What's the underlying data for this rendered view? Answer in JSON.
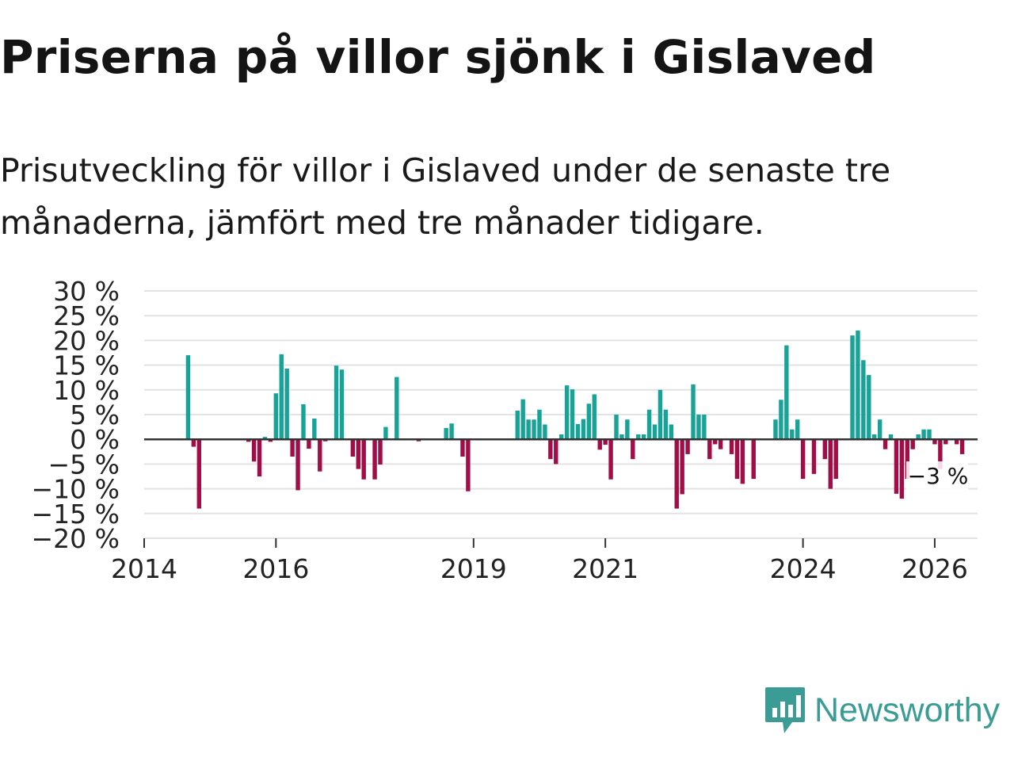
{
  "title": "Priserna på villor sjönk i Gislaved",
  "subtitle": "Prisutveckling för villor i Gislaved under de senaste tre månaderna, jämfört med tre månader tidigare.",
  "logo": {
    "text": "Newsworthy",
    "icon": "newsworthy-chart-icon"
  },
  "colors": {
    "positive": "#17a398",
    "negative": "#a10d46",
    "grid": "#e3e3e3",
    "zero": "#333333",
    "brand": "#3a9c94"
  },
  "chart_data": {
    "type": "bar",
    "title": "Priserna på villor sjönk i Gislaved",
    "xlabel": "",
    "ylabel": "",
    "ylim": [
      -20,
      30
    ],
    "yticks": [
      30,
      25,
      20,
      15,
      10,
      5,
      0,
      -5,
      -10,
      -15,
      -20
    ],
    "ytick_labels": [
      "30 %",
      "25 %",
      "20 %",
      "15 %",
      "10 %",
      "5 %",
      "0 %",
      "−5 %",
      "−10 %",
      "−15 %",
      "−20 %"
    ],
    "xticks": [
      {
        "year": 2014.0,
        "label": "2014"
      },
      {
        "year": 2016.0,
        "label": "2016"
      },
      {
        "year": 2019.0,
        "label": "2019"
      },
      {
        "year": 2021.0,
        "label": "2021"
      },
      {
        "year": 2024.0,
        "label": "2024"
      },
      {
        "year": 2026.0,
        "label": "2026"
      }
    ],
    "xlim": [
      2014.0,
      2026.65
    ],
    "start_year": 2014.0,
    "period_years": 0.0833333,
    "series": [
      {
        "name": "Prisutveckling",
        "values": [
          0,
          0,
          0,
          0,
          0,
          0,
          0,
          0,
          17,
          -1.5,
          -14,
          0,
          0,
          0,
          0,
          0,
          0,
          0,
          0,
          -0.5,
          -4.5,
          -7.5,
          0.5,
          -0.5,
          9.3,
          17.2,
          14.3,
          -3.5,
          -10.3,
          7.1,
          -1.9,
          4.2,
          -6.5,
          -0.4,
          0,
          14.9,
          14.1,
          0,
          -3.5,
          -6,
          -8.1,
          0,
          -8.1,
          -5.1,
          2.5,
          0,
          12.6,
          0,
          0,
          0,
          -0.4,
          0,
          0,
          0,
          0,
          2.3,
          3.2,
          0,
          -3.5,
          -10.5,
          0,
          0,
          0,
          0,
          0,
          0,
          0,
          0,
          5.8,
          8.1,
          4,
          4,
          6,
          3,
          -4,
          -5,
          1,
          10.9,
          10.1,
          3.1,
          4.1,
          7.2,
          9.1,
          -2.1,
          -1.1,
          -8.1,
          5,
          1,
          4,
          -4,
          1,
          1,
          6,
          3,
          10,
          6,
          3,
          -14,
          -11.1,
          -3,
          11.1,
          5,
          5,
          -4,
          -1,
          -2,
          0,
          -3,
          -8,
          -9,
          0,
          -8,
          0,
          0,
          0,
          4,
          8,
          19,
          2,
          4,
          -8,
          0,
          -7,
          0,
          -4,
          -10,
          -8,
          0,
          0,
          21,
          22,
          16,
          13,
          1,
          4,
          -2,
          1,
          -11,
          -12,
          -8,
          -2,
          1,
          2,
          2,
          -1,
          -6,
          -1,
          0,
          -1,
          -3
        ],
        "positive_color": "#17a398",
        "negative_color": "#a10d46"
      }
    ],
    "last_value_label": "−3 %"
  }
}
